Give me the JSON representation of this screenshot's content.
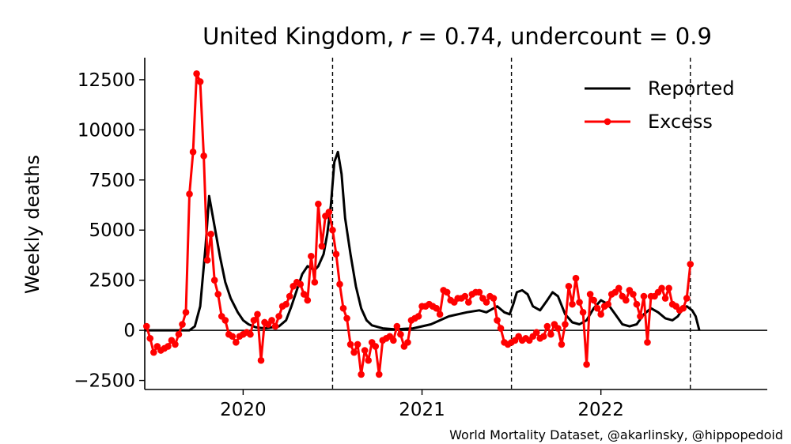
{
  "chart_data": {
    "type": "line",
    "title": "United Kingdom, r = 0.74, undercount = 0.9",
    "title_parts": {
      "prefix": "United Kingdom, ",
      "r_symbol": "r",
      "r_value": " = 0.74, undercount = 0.9"
    },
    "xlabel": "",
    "ylabel": "Weekly deaths",
    "credit": "World Mortality Dataset, @akarlinsky, @hippopedoid",
    "xlim": [
      2019.45,
      2022.93
    ],
    "ylim": [
      -2950,
      13600
    ],
    "x_ticks": [
      {
        "value": 2020.0,
        "label": "2020"
      },
      {
        "value": 2021.0,
        "label": "2021"
      },
      {
        "value": 2022.0,
        "label": "2022"
      }
    ],
    "y_ticks": [
      {
        "value": -2500,
        "label": "−2500"
      },
      {
        "value": 0,
        "label": "0"
      },
      {
        "value": 2500,
        "label": "2500"
      },
      {
        "value": 5000,
        "label": "5000"
      },
      {
        "value": 7500,
        "label": "7500"
      },
      {
        "value": 10000,
        "label": "10000"
      },
      {
        "value": 12500,
        "label": "12500"
      }
    ],
    "vlines": [
      2020.5,
      2021.5,
      2022.5
    ],
    "hline": 0,
    "grid": false,
    "legend": {
      "position": "top-right"
    },
    "series": [
      {
        "name": "Reported",
        "color": "#000000",
        "marker": false,
        "points": [
          [
            2019.45,
            0
          ],
          [
            2019.6,
            0
          ],
          [
            2019.67,
            0
          ],
          [
            2019.7,
            0
          ],
          [
            2019.73,
            200
          ],
          [
            2019.76,
            1200
          ],
          [
            2019.79,
            4200
          ],
          [
            2019.81,
            6700
          ],
          [
            2019.84,
            5200
          ],
          [
            2019.87,
            3700
          ],
          [
            2019.9,
            2400
          ],
          [
            2019.93,
            1600
          ],
          [
            2019.97,
            900
          ],
          [
            2020.0,
            500
          ],
          [
            2020.03,
            300
          ],
          [
            2020.07,
            150
          ],
          [
            2020.12,
            100
          ],
          [
            2020.2,
            200
          ],
          [
            2020.24,
            500
          ],
          [
            2020.27,
            1200
          ],
          [
            2020.3,
            2000
          ],
          [
            2020.33,
            2800
          ],
          [
            2020.36,
            3200
          ],
          [
            2020.38,
            3100
          ],
          [
            2020.4,
            3000
          ],
          [
            2020.42,
            3200
          ],
          [
            2020.45,
            3800
          ],
          [
            2020.47,
            4800
          ],
          [
            2020.49,
            6200
          ],
          [
            2020.51,
            8400
          ],
          [
            2020.53,
            8900
          ],
          [
            2020.55,
            7800
          ],
          [
            2020.57,
            5600
          ],
          [
            2020.6,
            3800
          ],
          [
            2020.63,
            2200
          ],
          [
            2020.66,
            1100
          ],
          [
            2020.69,
            500
          ],
          [
            2020.72,
            250
          ],
          [
            2020.78,
            100
          ],
          [
            2020.85,
            50
          ],
          [
            2020.95,
            100
          ],
          [
            2021.05,
            300
          ],
          [
            2021.15,
            700
          ],
          [
            2021.25,
            900
          ],
          [
            2021.32,
            1000
          ],
          [
            2021.36,
            900
          ],
          [
            2021.42,
            1200
          ],
          [
            2021.46,
            900
          ],
          [
            2021.49,
            800
          ],
          [
            2021.51,
            1300
          ],
          [
            2021.53,
            1900
          ],
          [
            2021.56,
            2000
          ],
          [
            2021.59,
            1800
          ],
          [
            2021.62,
            1200
          ],
          [
            2021.66,
            1000
          ],
          [
            2021.7,
            1500
          ],
          [
            2021.73,
            1900
          ],
          [
            2021.76,
            1700
          ],
          [
            2021.8,
            800
          ],
          [
            2021.84,
            400
          ],
          [
            2021.88,
            300
          ],
          [
            2021.92,
            500
          ],
          [
            2021.96,
            1100
          ],
          [
            2022.0,
            1500
          ],
          [
            2022.04,
            1300
          ],
          [
            2022.08,
            800
          ],
          [
            2022.12,
            300
          ],
          [
            2022.16,
            200
          ],
          [
            2022.2,
            300
          ],
          [
            2022.24,
            800
          ],
          [
            2022.28,
            1100
          ],
          [
            2022.32,
            900
          ],
          [
            2022.36,
            600
          ],
          [
            2022.4,
            500
          ],
          [
            2022.43,
            700
          ],
          [
            2022.46,
            1100
          ],
          [
            2022.48,
            1200
          ],
          [
            2022.51,
            1000
          ],
          [
            2022.53,
            700
          ],
          [
            2022.55,
            0
          ]
        ]
      },
      {
        "name": "Excess",
        "color": "#ff0000",
        "marker": true,
        "points": [
          [
            2019.46,
            200
          ],
          [
            2019.48,
            -400
          ],
          [
            2019.5,
            -1100
          ],
          [
            2019.52,
            -800
          ],
          [
            2019.54,
            -1000
          ],
          [
            2019.56,
            -900
          ],
          [
            2019.58,
            -800
          ],
          [
            2019.6,
            -500
          ],
          [
            2019.62,
            -700
          ],
          [
            2019.64,
            -200
          ],
          [
            2019.66,
            300
          ],
          [
            2019.68,
            900
          ],
          [
            2019.7,
            6800
          ],
          [
            2019.72,
            8900
          ],
          [
            2019.74,
            12800
          ],
          [
            2019.76,
            12400
          ],
          [
            2019.78,
            8700
          ],
          [
            2019.8,
            3500
          ],
          [
            2019.82,
            4800
          ],
          [
            2019.84,
            2500
          ],
          [
            2019.86,
            1800
          ],
          [
            2019.88,
            700
          ],
          [
            2019.9,
            500
          ],
          [
            2019.92,
            -200
          ],
          [
            2019.94,
            -300
          ],
          [
            2019.96,
            -600
          ],
          [
            2019.98,
            -300
          ],
          [
            2020.0,
            -200
          ],
          [
            2020.02,
            -100
          ],
          [
            2020.04,
            -200
          ],
          [
            2020.06,
            500
          ],
          [
            2020.08,
            800
          ],
          [
            2020.1,
            -1500
          ],
          [
            2020.12,
            400
          ],
          [
            2020.14,
            300
          ],
          [
            2020.16,
            500
          ],
          [
            2020.18,
            200
          ],
          [
            2020.2,
            700
          ],
          [
            2020.22,
            1200
          ],
          [
            2020.24,
            1300
          ],
          [
            2020.26,
            1700
          ],
          [
            2020.28,
            2200
          ],
          [
            2020.3,
            2400
          ],
          [
            2020.32,
            2300
          ],
          [
            2020.34,
            1800
          ],
          [
            2020.36,
            1500
          ],
          [
            2020.38,
            3700
          ],
          [
            2020.4,
            2400
          ],
          [
            2020.42,
            6300
          ],
          [
            2020.44,
            4200
          ],
          [
            2020.46,
            5700
          ],
          [
            2020.48,
            5900
          ],
          [
            2020.5,
            5000
          ],
          [
            2020.52,
            3800
          ],
          [
            2020.54,
            2300
          ],
          [
            2020.56,
            1100
          ],
          [
            2020.58,
            600
          ],
          [
            2020.6,
            -700
          ],
          [
            2020.62,
            -1100
          ],
          [
            2020.64,
            -700
          ],
          [
            2020.66,
            -2200
          ],
          [
            2020.68,
            -1000
          ],
          [
            2020.7,
            -1500
          ],
          [
            2020.72,
            -600
          ],
          [
            2020.74,
            -800
          ],
          [
            2020.76,
            -2200
          ],
          [
            2020.78,
            -500
          ],
          [
            2020.8,
            -400
          ],
          [
            2020.82,
            -300
          ],
          [
            2020.84,
            -500
          ],
          [
            2020.86,
            200
          ],
          [
            2020.88,
            -200
          ],
          [
            2020.9,
            -800
          ],
          [
            2020.92,
            -600
          ],
          [
            2020.94,
            500
          ],
          [
            2020.96,
            600
          ],
          [
            2020.98,
            700
          ],
          [
            2021.0,
            1200
          ],
          [
            2021.02,
            1200
          ],
          [
            2021.04,
            1300
          ],
          [
            2021.06,
            1200
          ],
          [
            2021.08,
            1100
          ],
          [
            2021.1,
            800
          ],
          [
            2021.12,
            2000
          ],
          [
            2021.14,
            1900
          ],
          [
            2021.16,
            1500
          ],
          [
            2021.18,
            1400
          ],
          [
            2021.2,
            1600
          ],
          [
            2021.22,
            1600
          ],
          [
            2021.24,
            1700
          ],
          [
            2021.26,
            1400
          ],
          [
            2021.28,
            1800
          ],
          [
            2021.3,
            1900
          ],
          [
            2021.32,
            1900
          ],
          [
            2021.34,
            1600
          ],
          [
            2021.36,
            1400
          ],
          [
            2021.38,
            1700
          ],
          [
            2021.4,
            1600
          ],
          [
            2021.42,
            500
          ],
          [
            2021.44,
            100
          ],
          [
            2021.46,
            -600
          ],
          [
            2021.48,
            -700
          ],
          [
            2021.5,
            -600
          ],
          [
            2021.52,
            -500
          ],
          [
            2021.54,
            -300
          ],
          [
            2021.56,
            -500
          ],
          [
            2021.58,
            -400
          ],
          [
            2021.6,
            -500
          ],
          [
            2021.62,
            -300
          ],
          [
            2021.64,
            -100
          ],
          [
            2021.66,
            -400
          ],
          [
            2021.68,
            -300
          ],
          [
            2021.7,
            200
          ],
          [
            2021.72,
            -200
          ],
          [
            2021.74,
            300
          ],
          [
            2021.76,
            100
          ],
          [
            2021.78,
            -700
          ],
          [
            2021.8,
            300
          ],
          [
            2021.82,
            2200
          ],
          [
            2021.84,
            1300
          ],
          [
            2021.86,
            2600
          ],
          [
            2021.88,
            1400
          ],
          [
            2021.9,
            900
          ],
          [
            2021.92,
            -1700
          ],
          [
            2021.94,
            1800
          ],
          [
            2021.96,
            1500
          ],
          [
            2021.98,
            1100
          ],
          [
            2022.0,
            800
          ],
          [
            2022.02,
            1200
          ],
          [
            2022.04,
            1300
          ],
          [
            2022.06,
            1800
          ],
          [
            2022.08,
            1900
          ],
          [
            2022.1,
            2100
          ],
          [
            2022.12,
            1700
          ],
          [
            2022.14,
            1500
          ],
          [
            2022.16,
            2000
          ],
          [
            2022.18,
            1800
          ],
          [
            2022.2,
            1300
          ],
          [
            2022.22,
            700
          ],
          [
            2022.24,
            1700
          ],
          [
            2022.26,
            -600
          ],
          [
            2022.28,
            1700
          ],
          [
            2022.3,
            1700
          ],
          [
            2022.32,
            1900
          ],
          [
            2022.34,
            2100
          ],
          [
            2022.36,
            1600
          ],
          [
            2022.38,
            2100
          ],
          [
            2022.4,
            1300
          ],
          [
            2022.42,
            1200
          ],
          [
            2022.44,
            1000
          ],
          [
            2022.46,
            1100
          ],
          [
            2022.48,
            1600
          ],
          [
            2022.5,
            3300
          ]
        ]
      }
    ]
  }
}
